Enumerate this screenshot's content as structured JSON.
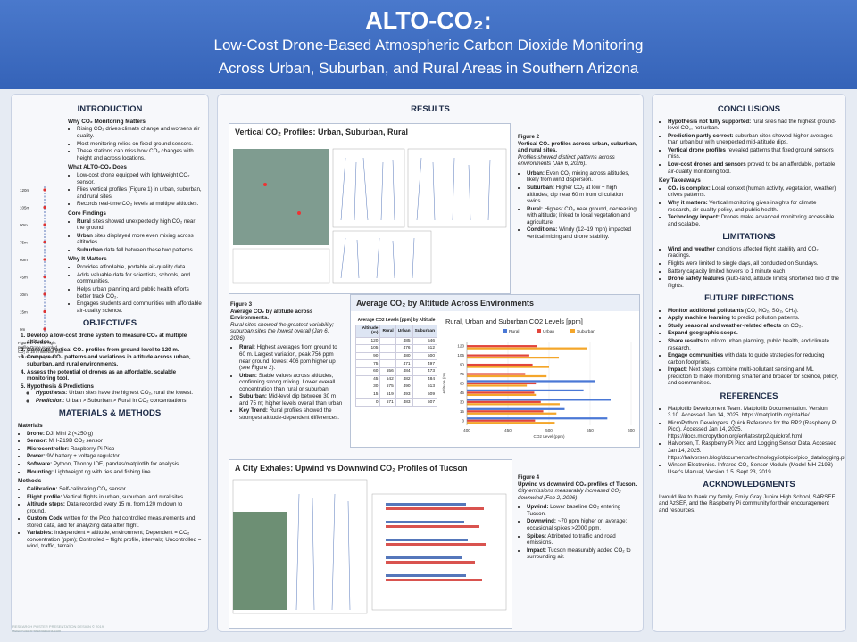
{
  "header": {
    "title": "ALTO-CO₂:",
    "subtitle_lines": [
      "Low-Cost Drone-Based Atmospheric Carbon Dioxide Monitoring",
      "Across Urban, Suburban, and Rural Areas in Southern Arizona"
    ]
  },
  "introduction": {
    "heading": "INTRODUCTION",
    "fig1": {
      "levels": [
        "120m",
        "105m",
        "90m",
        "75m",
        "60m",
        "45m",
        "30m",
        "15m",
        "0m"
      ],
      "caption": "Figure 1: Vertical flight profile. Drone recorded CO₂ at 15 m intervals from 120 m down to ground."
    },
    "groups": [
      {
        "title": "Why CO₂ Monitoring Matters",
        "items": [
          "Rising CO₂ drives climate change and worsens air quality.",
          "Most monitoring relies on fixed ground sensors.",
          "These stations can miss how CO₂ changes with height and across locations."
        ]
      },
      {
        "title": "What ALTO-CO₂ Does",
        "items": [
          "Low-cost drone equipped with lightweight CO₂ sensor.",
          "Flies vertical profiles (Figure 1) in urban, suburban, and rural sites.",
          "Records real-time CO₂ levels at multiple altitudes."
        ]
      },
      {
        "title": "Core Findings",
        "items": [
          [
            "Rural",
            " sites showed unexpectedly high CO₂ near the ground."
          ],
          [
            "Urban",
            " sites displayed more even mixing across altitudes."
          ],
          [
            "Suburban",
            " data fell between these two patterns."
          ]
        ]
      },
      {
        "title": "Why It Matters",
        "items": [
          "Provides affordable, portable air-quality data.",
          "Adds valuable data for scientists, schools, and communities.",
          "Helps urban planning and public health efforts better track CO₂.",
          "Engages students and communities with affordable air-quality science."
        ]
      }
    ]
  },
  "objectives": {
    "heading": "OBJECTIVES",
    "items": [
      "Develop a low-cost drone system to measure CO₂ at multiple altitudes.",
      "Generate vertical CO₂ profiles from ground level to 120 m.",
      "Compare CO₂ patterns and variations in altitude across urban, suburban, and rural environments.",
      "Assess the potential of drones as an affordable, scalable monitoring tool.",
      "Hypothesis & Predictions"
    ],
    "subitems": [
      [
        "Hypothesis:",
        " Urban sites have the highest CO₂, rural the lowest."
      ],
      [
        "Prediction:",
        " Urban > Suburban > Rural in CO₂ concentrations."
      ]
    ]
  },
  "methods": {
    "heading": "MATERIALS & METHODS",
    "groups": [
      {
        "title": "Materials",
        "items": [
          [
            "Drone:",
            " DJI Mini 2 (<250 g)"
          ],
          [
            "Sensor:",
            " MH-Z19B CO₂ sensor"
          ],
          [
            "Microcontroller:",
            " Raspberry Pi Pico"
          ],
          [
            "Power:",
            " 9V battery + voltage regulator"
          ],
          [
            "Software:",
            " Python, Thonny IDE, pandas/matplotlib for analysis"
          ],
          [
            "Mounting:",
            " Lightweight rig with ties and fishing line"
          ]
        ]
      },
      {
        "title": "Methods",
        "items": [
          [
            "Calibration:",
            " Self-calibrating CO₂ sensor."
          ],
          [
            "Flight profile:",
            " Vertical flights in urban, suburban, and rural sites."
          ],
          [
            "Altitude steps:",
            " Data recorded every 15 m, from 120 m down to ground."
          ],
          [
            "Custom Code",
            " written for the Pico that controlled measurements and stored data, and for analyzing data after flight."
          ],
          [
            "Variables:",
            " Independent = altitude, environment; Dependent = CO₂ concentration (ppm); Controlled = flight profile, intervals; Uncontrolled = wind, traffic, terrain"
          ]
        ]
      }
    ]
  },
  "results": {
    "heading": "RESULTS",
    "fig2": {
      "panel_title": "Vertical CO₂ Profiles: Urban, Suburban, Rural",
      "caption": {
        "label": "Figure 2",
        "title": "Vertical CO₂ profiles across urban, suburban, and rural sites.",
        "italic": "Profiles showed distinct patterns across environments (Jan 6, 2026).",
        "items": [
          [
            "Urban:",
            " Even CO₂ mixing across altitudes, likely from wind dispersion."
          ],
          [
            "Suburban:",
            " Higher CO₂ at low + high altitudes; dip near 60 m from circulation swirls."
          ],
          [
            "Rural:",
            " Highest CO₂ near ground, decreasing with altitude; linked to local vegetation and agriculture."
          ],
          [
            "Conditions:",
            " Windy (12–19 mph) impacted vertical mixing and drone stability."
          ]
        ]
      }
    },
    "fig3": {
      "panel_title": "Average CO₂ by Altitude Across Environments",
      "caption": {
        "label": "Figure 3",
        "title": "Average CO₂ by altitude across Environments.",
        "italic": "Rural sites showed the greatest variability; suburban sites the lowest overall (Jan 6, 2026).",
        "items": [
          [
            "Rural:",
            " Highest averages from ground to 60 m. Largest variation, peak 756 ppm near ground, lowest 406 ppm higher up (see Figure 2)."
          ],
          [
            "Urban:",
            " Stable values across altitudes, confirming strong mixing. Lower overall concentration than rural or suburban."
          ],
          [
            "Suburban:",
            " Mid-level dip between 30 m and 75 m; higher levels overall than urban"
          ],
          [
            "Key Trend:",
            " Rural profiles showed the strongest altitude-dependent differences."
          ]
        ]
      },
      "table": {
        "title": "Average CO2 Levels [ppm] by Altitude",
        "columns": [
          "Altitude (m)",
          "Rural",
          "Urban",
          "Suburban"
        ],
        "rows": [
          [
            120,
            null,
            485,
            546
          ],
          [
            105,
            null,
            476,
            512
          ],
          [
            90,
            null,
            480,
            500
          ],
          [
            75,
            null,
            471,
            497
          ],
          [
            60,
            556,
            484,
            473
          ],
          [
            45,
            542,
            482,
            484
          ],
          [
            30,
            575,
            490,
            513
          ],
          [
            15,
            519,
            493,
            509
          ],
          [
            0,
            571,
            483,
            507
          ]
        ]
      },
      "chart": {
        "type": "bar",
        "title": "Rural, Urban and Suburban CO2 Levels [ppm]",
        "xlabel": "CO2 Level (ppm)",
        "ylabel": "Altitude (m)",
        "series": [
          {
            "name": "Rural",
            "color": "#4a78d6"
          },
          {
            "name": "Urban",
            "color": "#e2463c"
          },
          {
            "name": "Suburban",
            "color": "#f4a62a"
          }
        ],
        "xlim": [
          400,
          600
        ],
        "xticks": [
          400,
          450,
          500,
          550,
          600
        ]
      }
    },
    "fig4": {
      "panel_title": "A City Exhales: Upwind vs Downwind CO₂ Profiles of Tucson",
      "caption": {
        "label": "Figure 4",
        "title": "Upwind vs downwind CO₂ profiles of Tucson.",
        "italic": "City emissions measurably increased CO₂ downwind (Feb 2, 2026)",
        "items": [
          [
            "Upwind:",
            " Lower baseline CO₂ entering Tucson."
          ],
          [
            "Downwind:",
            " ~70 ppm higher on average; occasional spikes >2000 ppm."
          ],
          [
            "Spikes:",
            " Attributed to traffic and road emissions."
          ],
          [
            "Impact:",
            " Tucson measurably added CO₂ to surrounding air."
          ]
        ]
      }
    }
  },
  "conclusions": {
    "heading": "CONCLUSIONS",
    "items": [
      [
        "Hypothesis not fully supported:",
        " rural sites had the highest ground-level CO₂, not urban."
      ],
      [
        "Prediction partly correct:",
        " suburban sites showed higher averages than urban but with unexpected mid-altitude dips."
      ],
      [
        "Vertical drone profiles",
        " revealed patterns that fixed ground sensors miss."
      ],
      [
        "Low-cost drones and sensors",
        " proved to be an affordable, portable air-quality monitoring tool."
      ]
    ],
    "takeaways_title": "Key Takeaways",
    "takeaways": [
      [
        "CO₂ is complex:",
        " Local context (human activity, vegetation, weather) drives patterns."
      ],
      [
        "Why it matters:",
        " Vertical monitoring gives insights for climate research, air-quality policy, and public health."
      ],
      [
        "Technology impact:",
        " Drones make advanced monitoring accessible and scalable."
      ]
    ]
  },
  "limitations": {
    "heading": "LIMITATIONS",
    "items": [
      [
        "Wind and weather",
        " conditions affected flight stability and CO₂ readings."
      ],
      "Flights were limited to single days, all conducted on Sundays.",
      "Battery capacity limited hovers to 1 minute each.",
      [
        "Drone safety features",
        " (auto-land, altitude limits) shortened two of the flights."
      ]
    ]
  },
  "future": {
    "heading": "FUTURE DIRECTIONS",
    "items": [
      [
        "Monitor additional pollutants",
        " (CO, NO₂, SO₂, CH₄)."
      ],
      [
        "Apply machine learning",
        " to predict pollution patterns."
      ],
      [
        "Study seasonal and weather-related effects",
        " on CO₂."
      ],
      [
        "Expand geographic scope."
      ],
      [
        "Share results",
        " to inform urban planning, public health, and climate research."
      ],
      [
        "Engage communities",
        " with data to guide strategies for reducing carbon footprints."
      ],
      [
        "Impact:",
        " Next steps combine multi-pollutant sensing and ML prediction to make monitoring smarter and broader for science, policy, and communities."
      ]
    ]
  },
  "references": {
    "heading": "REFERENCES",
    "items": [
      "Matplotlib Development Team. Matplotlib Documentation. Version 3.10. Accessed Jan 14, 2025. https://matplotlib.org/stable/",
      "MicroPython Developers. Quick Reference for the RP2 (Raspberry Pi Pico). Accessed Jan 14, 2025. https://docs.micropython.org/en/latest/rp2/quickref.html",
      "Halvorsen, T. Raspberry Pi Pico and Logging Sensor Data. Accessed Jan 14, 2025. https://halvorsen.blog/documents/technology/iot/pico/pico_datalogging.php",
      "Winsen Electronics. Infrared CO₂ Sensor Module (Model MH-Z19B) User's Manual, Version 1.5. Sept 23, 2019."
    ]
  },
  "acknowledgments": {
    "heading": "ACKNOWLEDGMENTS",
    "text": "I would like to thank my family, Emily Gray Junior High School, SARSEF and AzSEF, and the Raspberry Pi community for their encouragement and resources."
  },
  "footer": {
    "lines": [
      "RESEARCH POSTER PRESENTATION DESIGN © 2019",
      "www.PosterPresentations.com"
    ]
  }
}
